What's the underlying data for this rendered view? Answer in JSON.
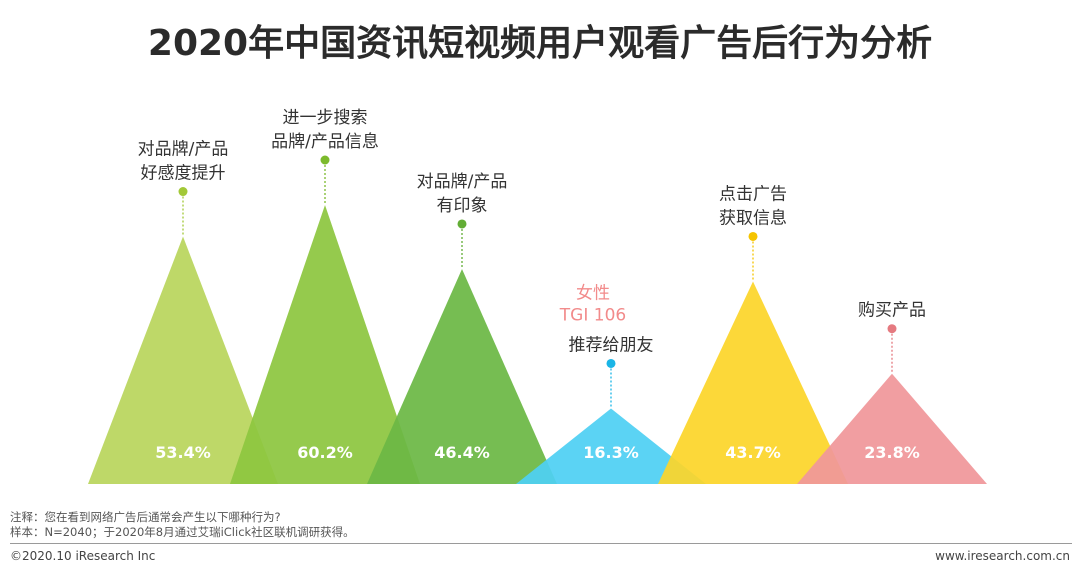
{
  "title": "2020年中国资讯短视频用户观看广告后行为分析",
  "chart_data": {
    "type": "bar",
    "categories": [
      [
        "对品牌/产品",
        "好感度提升"
      ],
      [
        "进一步搜索",
        "品牌/产品信息"
      ],
      [
        "对品牌/产品",
        "有印象"
      ],
      [
        "推荐给朋友"
      ],
      [
        "点击广告",
        "获取信息"
      ],
      [
        "购买产品"
      ]
    ],
    "values": [
      53.4,
      60.2,
      46.4,
      16.3,
      43.7,
      23.8
    ],
    "value_labels": [
      "53.4%",
      "60.2%",
      "46.4%",
      "16.3%",
      "43.7%",
      "23.8%"
    ],
    "colors": [
      "#b9d55c",
      "#8dc63f",
      "#6cb845",
      "#4fd0f3",
      "#fcd52a",
      "#f0979a"
    ],
    "dot_colors": [
      "#a2c837",
      "#7cba2c",
      "#62ad35",
      "#1ab5e6",
      "#f5c400",
      "#e57a80"
    ],
    "annotation": {
      "lines": [
        "女性",
        "TGI 106"
      ],
      "series_index": 3,
      "color": "#f28b8b"
    },
    "ylabel": "",
    "ylim": [
      0,
      60.2
    ],
    "grid": false,
    "legend": "none"
  },
  "footer": {
    "note": "注释：您在看到网络广告后通常会产生以下哪种行为?",
    "sample": "样本：N=2040；于2020年8月通过艾瑞iClick社区联机调研获得。",
    "copyright": "©2020.10 iResearch Inc",
    "website": "www.iresearch.com.cn"
  }
}
